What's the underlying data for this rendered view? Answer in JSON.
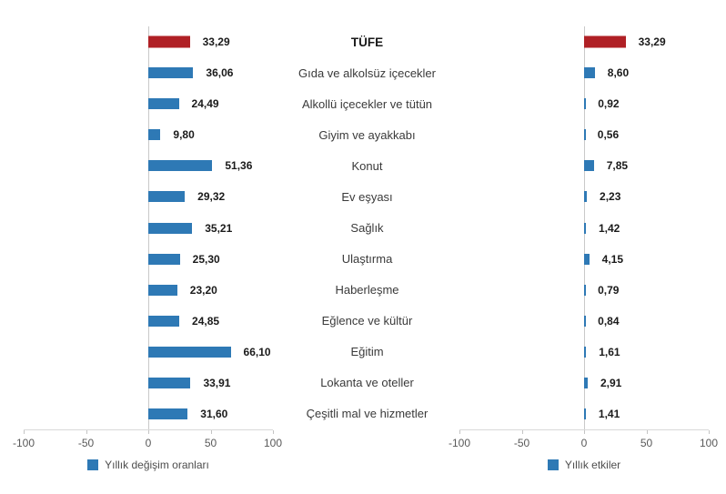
{
  "colors": {
    "bar_blue": "#2e79b5",
    "bar_red": "#b02025",
    "axis_line": "#d9d9d9",
    "zero_line": "#c9c9c9",
    "tick_text": "#595959",
    "value_text": "#1a1a1a",
    "category_text": "#3a3a3a"
  },
  "chart_data": {
    "type": "bar",
    "orientation": "horizontal",
    "title": "TÜFE",
    "categories": [
      "TÜFE",
      "Gıda ve alkolsüz içecekler",
      "Alkollü içecekler ve tütün",
      "Giyim ve ayakkabı",
      "Konut",
      "Ev eşyası",
      "Sağlık",
      "Ulaştırma",
      "Haberleşme",
      "Eğlence ve kültür",
      "Eğitim",
      "Lokanta ve oteller",
      "Çeşitli mal ve hizmetler"
    ],
    "xlim": [
      -100,
      100
    ],
    "ticks": [
      -100,
      -50,
      0,
      50,
      100
    ],
    "tick_labels": [
      "-100",
      "-50",
      "0",
      "50",
      "100"
    ],
    "grid": false,
    "legend_position": "bottom",
    "highlight_index": 0,
    "series": [
      {
        "name": "Yıllık değişim oranları",
        "values": [
          33.29,
          36.06,
          24.49,
          9.8,
          51.36,
          29.32,
          35.21,
          25.3,
          23.2,
          24.85,
          66.1,
          33.91,
          31.6
        ],
        "labels": [
          "33,29",
          "36,06",
          "24,49",
          "9,80",
          "51,36",
          "29,32",
          "35,21",
          "25,30",
          "23,20",
          "24,85",
          "66,10",
          "33,91",
          "31,60"
        ]
      },
      {
        "name": "Yıllık etkiler",
        "values": [
          33.29,
          8.6,
          0.92,
          0.56,
          7.85,
          2.23,
          1.42,
          4.15,
          0.79,
          0.84,
          1.61,
          2.91,
          1.41
        ],
        "labels": [
          "33,29",
          "8,60",
          "0,92",
          "0,56",
          "7,85",
          "2,23",
          "1,42",
          "4,15",
          "0,79",
          "0,84",
          "1,61",
          "2,91",
          "1,41"
        ]
      }
    ]
  }
}
